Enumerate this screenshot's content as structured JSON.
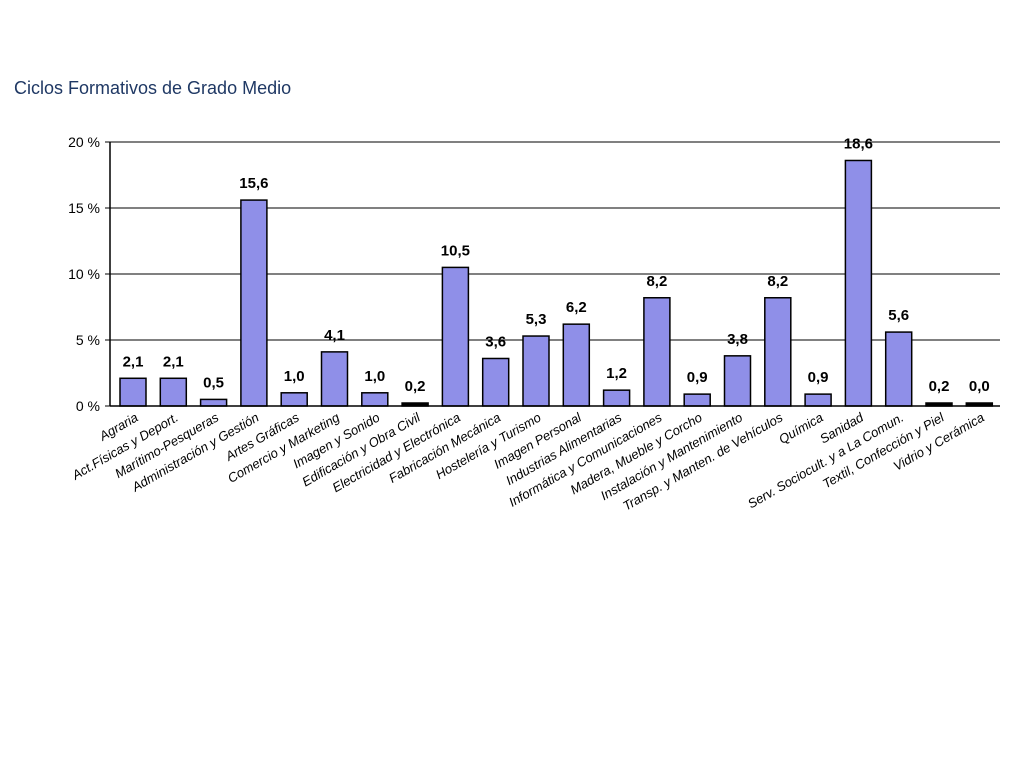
{
  "chart_data": {
    "type": "bar",
    "title": "Ciclos Formativos de Grado Medio",
    "xlabel": "",
    "ylabel": "",
    "ylim": [
      0,
      20
    ],
    "yticks": [
      {
        "value": 0,
        "label": "0 %"
      },
      {
        "value": 5,
        "label": "5 %"
      },
      {
        "value": 10,
        "label": "10 %"
      },
      {
        "value": 15,
        "label": "15 %"
      },
      {
        "value": 20,
        "label": "20 %"
      }
    ],
    "grid": true,
    "bar_color": "#8f8fe8",
    "low_bar_color": "#000000",
    "categories": [
      "Agraria",
      "Act.Físicas y Deport.",
      "Marítimo-Pesqueras",
      "Administración y Gestión",
      "Artes Gráficas",
      "Comercio y Marketing",
      "Imagen y Sonido",
      "Edificación y Obra Civil",
      "Electricidad y Electrónica",
      "Fabricación Mecánica",
      "Hostelería y Turismo",
      "Imagen Personal",
      "Industrias Alimentarias",
      "Informática y Comunicaciones",
      "Madera, Mueble y Corcho",
      "Instalación y Mantenimiento",
      "Transp. y Manten. de Vehículos",
      "Química",
      "Sanidad",
      "Serv. Sociocult. y a La Comun.",
      "Textil, Confección y Piel",
      "Vidrio y Cerámica"
    ],
    "values": [
      2.1,
      2.1,
      0.5,
      15.6,
      1.0,
      4.1,
      1.0,
      0.2,
      10.5,
      3.6,
      5.3,
      6.2,
      1.2,
      8.2,
      0.9,
      3.8,
      8.2,
      0.9,
      18.6,
      5.6,
      0.2,
      0.0
    ],
    "value_labels": [
      "2,1",
      "2,1",
      "0,5",
      "15,6",
      "1,0",
      "4,1",
      "1,0",
      "0,2",
      "10,5",
      "3,6",
      "5,3",
      "6,2",
      "1,2",
      "8,2",
      "0,9",
      "3,8",
      "8,2",
      "0,9",
      "18,6",
      "5,6",
      "0,2",
      "0,0"
    ]
  }
}
